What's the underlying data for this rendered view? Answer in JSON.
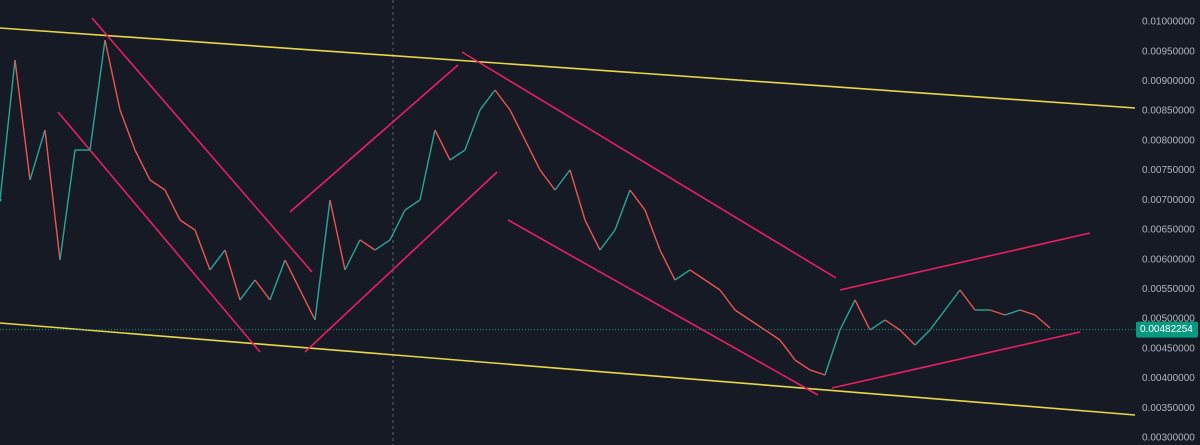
{
  "chart_data": {
    "type": "line",
    "values": [
      0.007004,
      0.00936,
      0.00734,
      0.008182,
      0.005994,
      0.007845,
      0.007845,
      0.009697,
      0.008519,
      0.007845,
      0.00734,
      0.007172,
      0.006667,
      0.006499,
      0.005826,
      0.006162,
      0.005321,
      0.005657,
      0.005321,
      0.005994,
      0.005489,
      0.004984,
      0.007004,
      0.005826,
      0.006331,
      0.006162,
      0.006331,
      0.006835,
      0.007004,
      0.008182,
      0.007677,
      0.007845,
      0.008519,
      0.008855,
      0.008519,
      0.008014,
      0.007509,
      0.007172,
      0.007509,
      0.006667,
      0.006162,
      0.006499,
      0.007172,
      0.006835,
      0.006162,
      0.005657,
      0.005826,
      0.005657,
      0.005489,
      0.005152,
      0.004984,
      0.004816,
      0.004647,
      0.004311,
      0.004143,
      0.004058,
      0.004816,
      0.005321,
      0.004816,
      0.004984,
      0.004816,
      0.004563,
      0.004816,
      0.005152,
      0.005489,
      0.005152,
      0.005152,
      0.005068,
      0.005152,
      0.005068,
      0.004849
    ],
    "up_color": "#26a69a",
    "down_color": "#ef5350",
    "current_price": 0.00482254,
    "current_price_color": "#089981",
    "ylim": [
      0.00288,
      0.01037
    ],
    "yticks": [
      {
        "value": 0.003,
        "label": "0.00300000"
      },
      {
        "value": 0.0035,
        "label": "0.00350000"
      },
      {
        "value": 0.004,
        "label": "0.00400000"
      },
      {
        "value": 0.0045,
        "label": "0.00450000"
      },
      {
        "value": 0.005,
        "label": "0.00500000"
      },
      {
        "value": 0.0055,
        "label": "0.00550000"
      },
      {
        "value": 0.006,
        "label": "0.00600000"
      },
      {
        "value": 0.0065,
        "label": "0.00650000"
      },
      {
        "value": 0.007,
        "label": "0.00700000"
      },
      {
        "value": 0.0075,
        "label": "0.00750000"
      },
      {
        "value": 0.008,
        "label": "0.00800000"
      },
      {
        "value": 0.0085,
        "label": "0.00850000"
      },
      {
        "value": 0.009,
        "label": "0.00900000"
      },
      {
        "value": 0.0095,
        "label": "0.00950000"
      },
      {
        "value": 0.01,
        "label": "0.01000000"
      }
    ],
    "grid": false
  }
}
